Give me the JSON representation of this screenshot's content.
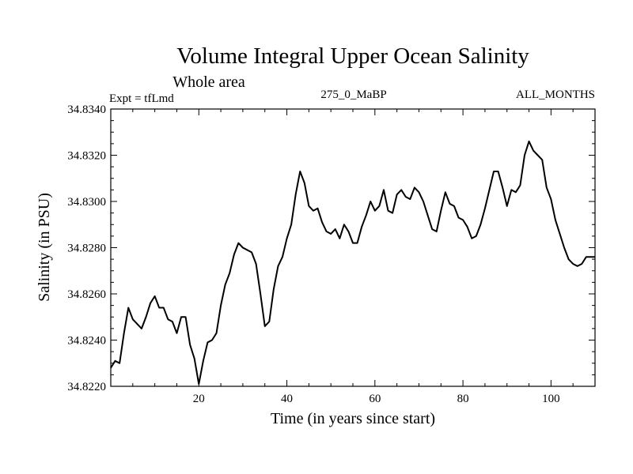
{
  "chart_data": {
    "type": "line",
    "title": "Volume Integral Upper Ocean Salinity",
    "subtitle": "Whole area",
    "left_label": "Expt = tfLmd",
    "center_label": "275_0_MaBP",
    "right_label": "ALL_MONTHS",
    "xlabel": "Time (in years since start)",
    "ylabel": "Salinity (in PSU)",
    "xlim": [
      0,
      110
    ],
    "ylim": [
      34.822,
      34.834
    ],
    "xticks": [
      20,
      40,
      60,
      80,
      100
    ],
    "xtick_labels": [
      "20",
      "40",
      "60",
      "80",
      "100"
    ],
    "yticks": [
      34.822,
      34.824,
      34.826,
      34.828,
      34.83,
      34.832,
      34.834
    ],
    "ytick_labels": [
      "34.8220",
      "34.8240",
      "34.8260",
      "34.8280",
      "34.8300",
      "34.8320",
      "34.8340"
    ],
    "grid": false,
    "series": [
      {
        "name": "salinity",
        "color": "#000000",
        "x": [
          0,
          1,
          2,
          3,
          4,
          5,
          6,
          7,
          8,
          9,
          10,
          11,
          12,
          13,
          14,
          15,
          16,
          17,
          18,
          19,
          20,
          21,
          22,
          23,
          24,
          25,
          26,
          27,
          28,
          29,
          30,
          31,
          32,
          33,
          34,
          35,
          36,
          37,
          38,
          39,
          40,
          41,
          42,
          43,
          44,
          45,
          46,
          47,
          48,
          49,
          50,
          51,
          52,
          53,
          54,
          55,
          56,
          57,
          58,
          59,
          60,
          61,
          62,
          63,
          64,
          65,
          66,
          67,
          68,
          69,
          70,
          71,
          72,
          73,
          74,
          75,
          76,
          77,
          78,
          79,
          80,
          81,
          82,
          83,
          84,
          85,
          86,
          87,
          88,
          89,
          90,
          91,
          92,
          93,
          94,
          95,
          96,
          97,
          98,
          99,
          100,
          101,
          102,
          103,
          104,
          105,
          106,
          107,
          108,
          109,
          110
        ],
        "values": [
          34.8228,
          34.8231,
          34.823,
          34.8243,
          34.8254,
          34.8249,
          34.8247,
          34.8245,
          34.825,
          34.8256,
          34.8259,
          34.8254,
          34.8254,
          34.8249,
          34.8248,
          34.8243,
          34.825,
          34.825,
          34.8238,
          34.8232,
          34.8221,
          34.8231,
          34.8239,
          34.824,
          34.8243,
          34.8255,
          34.8264,
          34.8269,
          34.8277,
          34.8282,
          34.828,
          34.8279,
          34.8278,
          34.8273,
          34.826,
          34.8246,
          34.8248,
          34.8262,
          34.8272,
          34.8276,
          34.8284,
          34.829,
          34.8303,
          34.8313,
          34.8308,
          34.8298,
          34.8296,
          34.8297,
          34.8291,
          34.8287,
          34.8286,
          34.8288,
          34.8284,
          34.829,
          34.8287,
          34.8282,
          34.8282,
          34.8289,
          34.8294,
          34.83,
          34.8296,
          34.8298,
          34.8305,
          34.8296,
          34.8295,
          34.8303,
          34.8305,
          34.8302,
          34.8301,
          34.8306,
          34.8304,
          34.83,
          34.8294,
          34.8288,
          34.8287,
          34.8296,
          34.8304,
          34.8299,
          34.8298,
          34.8293,
          34.8292,
          34.8289,
          34.8284,
          34.8285,
          34.829,
          34.8297,
          34.8305,
          34.8313,
          34.8313,
          34.8306,
          34.8298,
          34.8305,
          34.8304,
          34.8307,
          34.832,
          34.8326,
          34.8322,
          34.832,
          34.8318,
          34.8306,
          34.8301,
          34.8292,
          34.8286,
          34.828,
          34.8275,
          34.8273,
          34.8272,
          34.8273,
          34.8276,
          34.8276,
          34.8276
        ]
      }
    ]
  }
}
